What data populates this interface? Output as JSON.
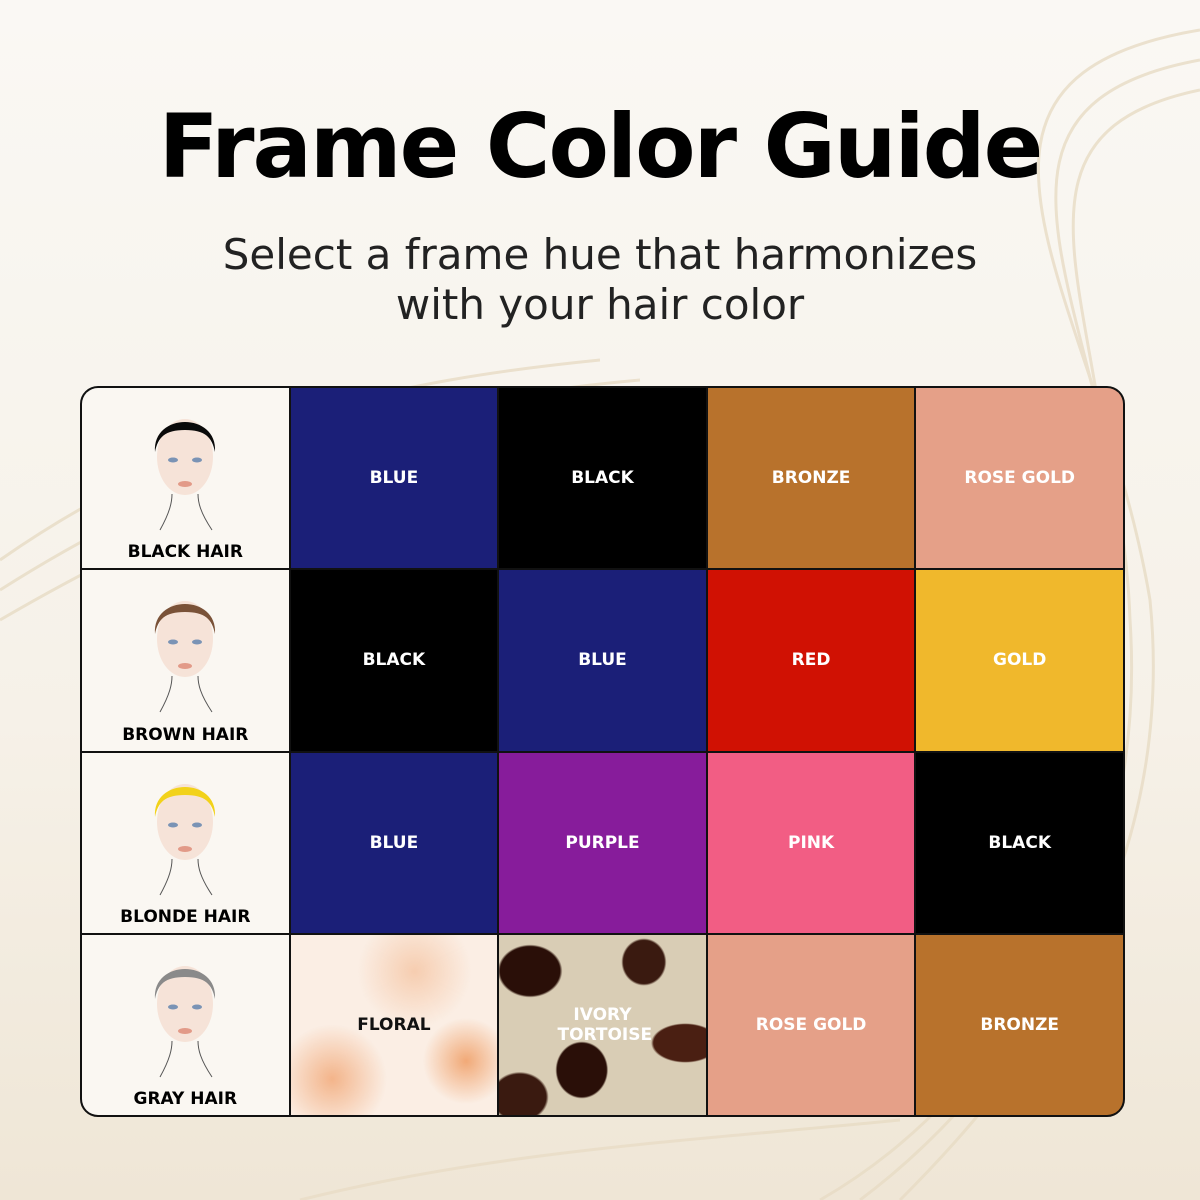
{
  "title": "Frame Color Guide",
  "subtitle_line1": "Select a frame hue that harmonizes",
  "subtitle_line2": "with your hair color",
  "rows": [
    {
      "hair": "BLACK HAIR",
      "hair_color": "#0a0a0a",
      "colors": [
        {
          "label": "BLUE",
          "color": "#1b1f78"
        },
        {
          "label": "BLACK",
          "color": "#000000"
        },
        {
          "label": "BRONZE",
          "color": "#b8722c"
        },
        {
          "label": "ROSE GOLD",
          "color": "#e5a088"
        }
      ]
    },
    {
      "hair": "BROWN HAIR",
      "hair_color": "#7a5238",
      "colors": [
        {
          "label": "BLACK",
          "color": "#000000"
        },
        {
          "label": "BLUE",
          "color": "#1b1f78"
        },
        {
          "label": "RED",
          "color": "#d01103"
        },
        {
          "label": "GOLD",
          "color": "#f0b82c"
        }
      ]
    },
    {
      "hair": "BLONDE HAIR",
      "hair_color": "#f2d21a",
      "colors": [
        {
          "label": "BLUE",
          "color": "#1b1f78"
        },
        {
          "label": "PURPLE",
          "color": "#871c9b"
        },
        {
          "label": "PINK",
          "color": "#f25d84"
        },
        {
          "label": "BLACK",
          "color": "#000000"
        }
      ]
    },
    {
      "hair": "GRAY HAIR",
      "hair_color": "#8a8a8a",
      "colors": [
        {
          "label": "FLORAL",
          "color": "pattern"
        },
        {
          "label": "IVORY TORTOISE",
          "color": "pattern"
        },
        {
          "label": "ROSE GOLD",
          "color": "#e5a088"
        },
        {
          "label": "BRONZE",
          "color": "#b8722c"
        }
      ]
    }
  ]
}
